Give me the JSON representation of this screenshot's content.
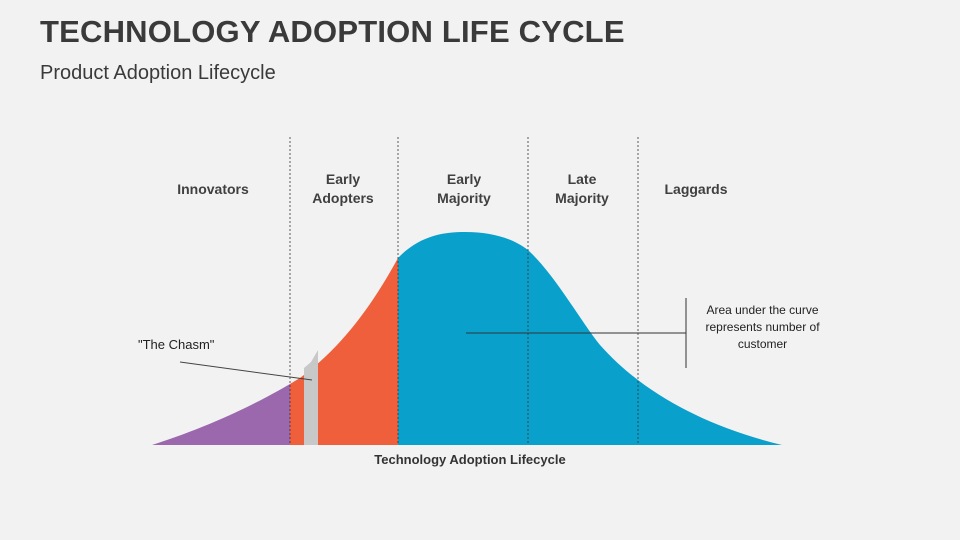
{
  "header": {
    "title": "TECHNOLOGY ADOPTION LIFE CYCLE",
    "subtitle": "Product Adoption Lifecycle"
  },
  "segments": [
    {
      "label_line1": "Innovators",
      "label_line2": "",
      "color": "#9b67ad"
    },
    {
      "label_line1": "Early",
      "label_line2": "Adopters",
      "color": "#f05f3c"
    },
    {
      "label_line1": "Early",
      "label_line2": "Majority",
      "color": "#0aa0cc"
    },
    {
      "label_line1": "Late",
      "label_line2": "Majority",
      "color": "#0aa0cc"
    },
    {
      "label_line1": "Laggards",
      "label_line2": "",
      "color": "#0aa0cc"
    }
  ],
  "chasm": {
    "label": "\"The Chasm\"",
    "color": "#c8c8c8"
  },
  "annotation": {
    "line1": "Area under the curve",
    "line2": "represents number of",
    "line3": "customer"
  },
  "axis_label": "Technology Adoption Lifecycle"
}
